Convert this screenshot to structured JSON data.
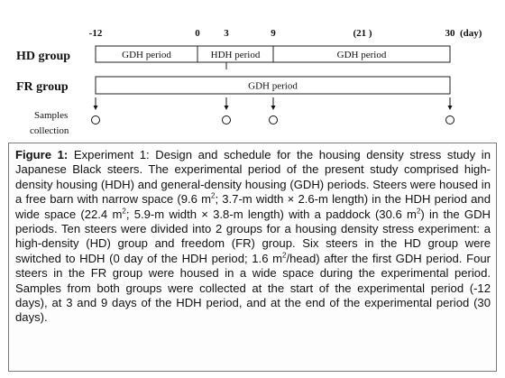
{
  "timeline": {
    "unit": "(day)",
    "ticks": [
      {
        "label": "-12",
        "day": -12
      },
      {
        "label": "0",
        "day": 0
      },
      {
        "label": "3",
        "day": 3
      },
      {
        "label": "9",
        "day": 9
      },
      {
        "label": "(21 )",
        "day": 21
      },
      {
        "label": "30",
        "day": 30
      }
    ]
  },
  "groups": [
    {
      "label": "HD group",
      "periods": [
        {
          "label": "GDH period",
          "start": -12,
          "end": 0
        },
        {
          "label": "HDH period",
          "start": 0,
          "end": 9
        },
        {
          "label": "GDH period",
          "start": 9,
          "end": 30
        }
      ]
    },
    {
      "label": "FR group",
      "periods": [
        {
          "label": "GDH period",
          "start": -12,
          "end": 30
        }
      ]
    }
  ],
  "samples": {
    "label_line1": "Samples",
    "label_line2": "collection",
    "days": [
      -12,
      3,
      9,
      30
    ]
  },
  "caption": {
    "label": "Figure 1:",
    "p1": " Experiment 1: Design and schedule for the housing density stress study in Japanese Black steers. The experimental period of the present study comprised high-density housing (HDH) and general-density housing (GDH) periods. Steers were housed in a free barn with narrow space (9.6 m",
    "sup1": "2",
    "p2": "; 3.7-m width × 2.6-m length) in the HDH period and wide space (22.4 m",
    "sup2": "2",
    "p3": "; 5.9-m width × 3.8-m length) with a paddock (30.6 m",
    "sup3": "2",
    "p4": ") in the GDH periods. Ten steers were divided into 2 groups for a housing density stress experiment: a high-density (HD) group and freedom (FR) group. Six steers in the HD group were switched to HDH (0 day of the HDH period; 1.6 m",
    "sup4": "2",
    "p5": "/head) after the first GDH period. Four steers in the FR group were housed in a wide space during the experimental period. Samples from both groups were collected at the start of the experimental period (-12 days), at 3 and 9 days of the HDH period, and at the end of the experimental period (30 days)."
  }
}
